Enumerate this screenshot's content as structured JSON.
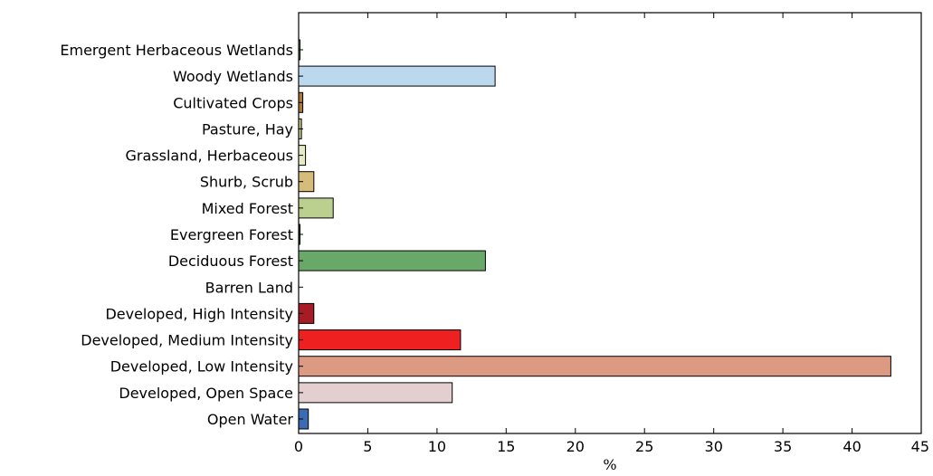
{
  "chart_data": {
    "type": "bar",
    "orientation": "horizontal",
    "xlabel": "%",
    "xlim": [
      0,
      45
    ],
    "xticks": [
      "0",
      "5",
      "10",
      "15",
      "20",
      "25",
      "30",
      "35",
      "40",
      "45"
    ],
    "grid": false,
    "categories": [
      "Emergent Herbaceous Wetlands",
      "Woody Wetlands",
      "Cultivated Crops",
      "Pasture, Hay",
      "Grassland, Herbaceous",
      "Shurb, Scrub",
      "Mixed Forest",
      "Evergreen Forest",
      "Deciduous Forest",
      "Barren Land",
      "Developed, High Intensity",
      "Developed, Medium Intensity",
      "Developed, Low Intensity",
      "Developed, Open Space",
      "Open Water"
    ],
    "values": [
      0.1,
      14.2,
      0.3,
      0.2,
      0.5,
      1.1,
      2.5,
      0.1,
      13.5,
      0.0,
      1.1,
      11.7,
      42.8,
      11.1,
      0.7
    ],
    "colors": [
      "#6f9a6a",
      "#bcd8ee",
      "#a9793a",
      "#c8c88a",
      "#e6ebc6",
      "#d6bb7a",
      "#bbd08f",
      "#2d5a2d",
      "#6aa86a",
      "#b9b2a6",
      "#a51c24",
      "#ee2020",
      "#dc9a82",
      "#e4cfd0",
      "#3d6bb3"
    ]
  }
}
